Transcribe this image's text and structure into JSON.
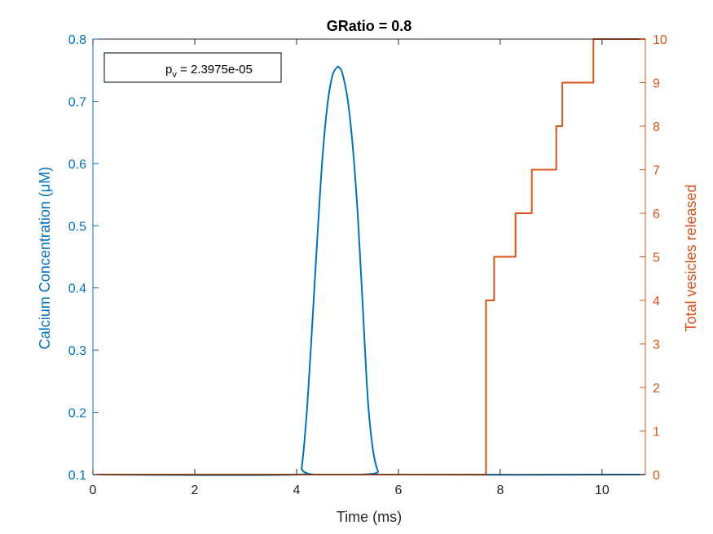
{
  "chart_data": {
    "type": "line",
    "title": "GRatio = 0.8",
    "xlabel": "Time (ms)",
    "ylabel_left": "Calcium Concentration (μM)",
    "ylabel_right": "Total vesicles released",
    "xlim": [
      0,
      10.85
    ],
    "ylim_left": [
      0.1,
      0.8
    ],
    "ylim_right": [
      0,
      10
    ],
    "x_ticks": [
      "0",
      "2",
      "4",
      "6",
      "8",
      "10"
    ],
    "y_left_ticks": [
      "0.1",
      "0.2",
      "0.3",
      "0.4",
      "0.5",
      "0.6",
      "0.7",
      "0.8"
    ],
    "y_right_ticks": [
      "0",
      "1",
      "2",
      "3",
      "4",
      "5",
      "6",
      "7",
      "8",
      "9",
      "10"
    ],
    "grid": false,
    "annotation": {
      "symbol": "p",
      "subscript": "v",
      "text": " = 2.3975e-05"
    },
    "colors": {
      "left": "#0072BD",
      "right": "#D95319",
      "axis": "#262626"
    },
    "series": [
      {
        "axis": "left",
        "style": "smooth",
        "x": [
          0,
          4.0,
          4.1,
          4.2,
          4.3,
          4.4,
          4.5,
          4.6,
          4.7,
          4.8,
          4.85,
          4.9,
          5.0,
          5.1,
          5.2,
          5.3,
          5.4,
          5.5,
          5.6,
          5.7,
          10.85
        ],
        "y": [
          0.1,
          0.1,
          0.112,
          0.2,
          0.33,
          0.47,
          0.6,
          0.69,
          0.74,
          0.755,
          0.753,
          0.745,
          0.705,
          0.63,
          0.52,
          0.37,
          0.22,
          0.14,
          0.105,
          0.1,
          0.1
        ]
      },
      {
        "axis": "right",
        "style": "step",
        "x": [
          0,
          7.72,
          7.88,
          8.3,
          8.62,
          9.1,
          9.22,
          9.83,
          10.85
        ],
        "y": [
          0,
          4,
          5,
          6,
          7,
          8,
          9,
          10,
          10
        ]
      }
    ]
  }
}
